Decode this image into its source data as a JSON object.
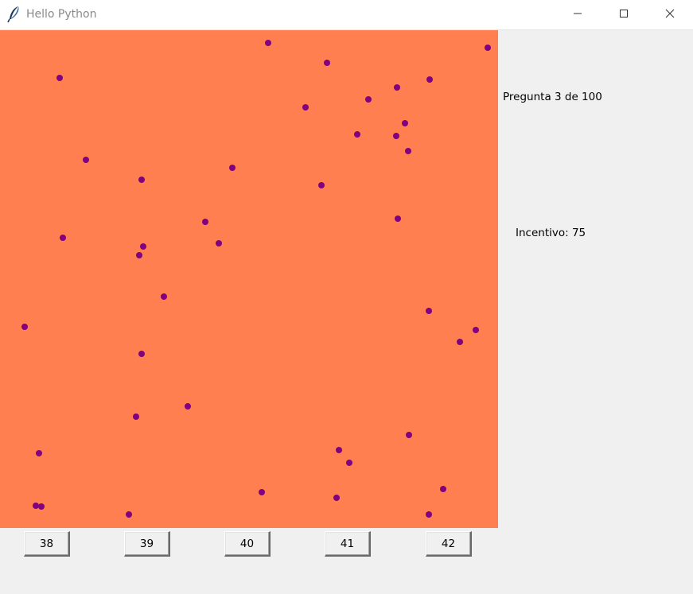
{
  "window": {
    "title": "Hello Python",
    "icon": "feather-icon",
    "controls": [
      "minimize-icon",
      "maximize-icon",
      "close-icon"
    ]
  },
  "canvas": {
    "background": "#ff7f50",
    "dot_color": "#800080"
  },
  "labels": {
    "question": "Pregunta 3 de 100",
    "incentive": "Incentivo: 75"
  },
  "answers": [
    {
      "label": "38"
    },
    {
      "label": "39"
    },
    {
      "label": "40"
    },
    {
      "label": "41"
    },
    {
      "label": "42"
    }
  ]
}
